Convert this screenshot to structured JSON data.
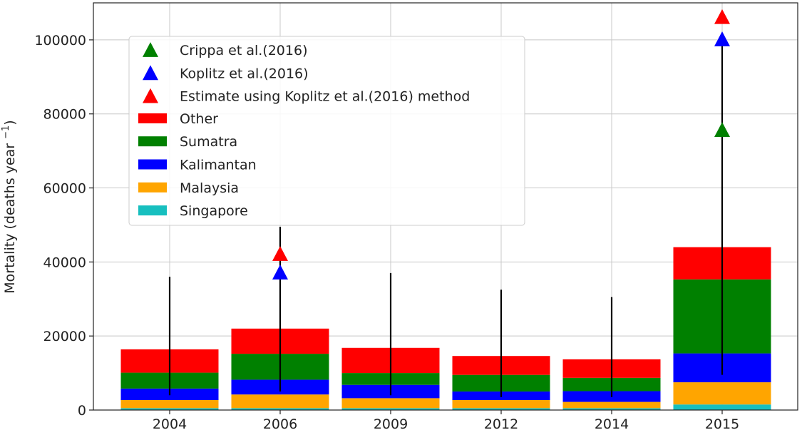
{
  "chart_data": {
    "type": "bar",
    "stacked": true,
    "categories": [
      "2004",
      "2006",
      "2009",
      "2012",
      "2014",
      "2015"
    ],
    "ylabel": "Mortality (deaths year ",
    "ylabel_superscript": "−1",
    "ylabel_close": ")",
    "ylim": [
      0,
      110000
    ],
    "yticks": [
      0,
      20000,
      40000,
      60000,
      80000,
      100000
    ],
    "grid": true,
    "legend_position": "upper-left",
    "series": [
      {
        "name": "Singapore",
        "color": "#17bfbf",
        "values": [
          500,
          500,
          500,
          500,
          500,
          1500
        ]
      },
      {
        "name": "Malaysia",
        "color": "#ffa500",
        "values": [
          2200,
          3700,
          2700,
          2200,
          1700,
          6000
        ]
      },
      {
        "name": "Kalimantan",
        "color": "#0000ff",
        "values": [
          3100,
          4000,
          3600,
          2300,
          2900,
          7800
        ]
      },
      {
        "name": "Sumatra",
        "color": "#008000",
        "values": [
          4300,
          7000,
          3200,
          4500,
          3600,
          20000
        ]
      },
      {
        "name": "Other",
        "color": "#ff0000",
        "values": [
          6300,
          6800,
          6800,
          5100,
          5000,
          8700
        ]
      }
    ],
    "error_bars": [
      {
        "category": "2004",
        "low": 4000,
        "high": 36000
      },
      {
        "category": "2006",
        "low": 5000,
        "high": 49500
      },
      {
        "category": "2009",
        "low": 4000,
        "high": 37000
      },
      {
        "category": "2012",
        "low": 3500,
        "high": 32500
      },
      {
        "category": "2014",
        "low": 3500,
        "high": 30500
      },
      {
        "category": "2015",
        "low": 9500,
        "high": 100000
      }
    ],
    "markers": [
      {
        "name": "Crippa et al.(2016)",
        "color": "#008000",
        "points": [
          {
            "category": "2015",
            "value": 75500
          }
        ]
      },
      {
        "name": "Koplitz et al.(2016)",
        "color": "#0000ff",
        "points": [
          {
            "category": "2006",
            "value": 37000
          },
          {
            "category": "2015",
            "value": 100000
          }
        ]
      },
      {
        "name": "Estimate using Koplitz et al.(2016) method",
        "color": "#ff0000",
        "points": [
          {
            "category": "2006",
            "value": 42000
          },
          {
            "category": "2015",
            "value": 106000
          }
        ]
      }
    ]
  }
}
